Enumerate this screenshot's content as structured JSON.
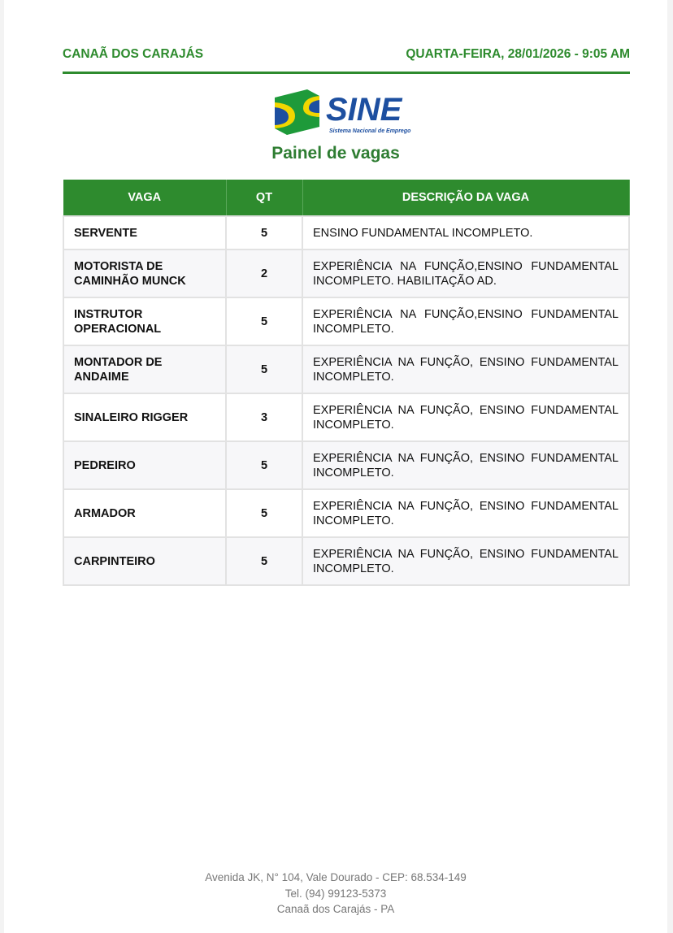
{
  "header": {
    "city": "CANAÃ DOS CARAJÁS",
    "datetime": "QUARTA-FEIRA, 28/01/2026 - 9:05 AM"
  },
  "logo": {
    "text": "SINE",
    "subtitle": "Sistema Nacional de Emprego",
    "colors": {
      "green": "#1e9a3a",
      "yellow": "#f2d600",
      "blue": "#1d4fa0"
    }
  },
  "title": "Painel de vagas",
  "table": {
    "headers": [
      "VAGA",
      "QT",
      "DESCRIÇÃO DA VAGA"
    ],
    "rows": [
      {
        "vaga": "SERVENTE",
        "qt": "5",
        "desc": "ENSINO FUNDAMENTAL INCOMPLETO."
      },
      {
        "vaga": "MOTORISTA DE CAMINHÃO MUNCK",
        "qt": "2",
        "desc": "EXPERIÊNCIA NA FUNÇÃO,ENSINO FUNDAMENTAL INCOMPLETO. HABILITAÇÃO AD."
      },
      {
        "vaga": "INSTRUTOR OPERACIONAL",
        "qt": "5",
        "desc": "EXPERIÊNCIA NA FUNÇÃO,ENSINO FUNDAMENTAL INCOMPLETO."
      },
      {
        "vaga": "MONTADOR DE ANDAIME",
        "qt": "5",
        "desc": "EXPERIÊNCIA NA FUNÇÃO, ENSINO FUNDAMENTAL INCOMPLETO."
      },
      {
        "vaga": "SINALEIRO RIGGER",
        "qt": "3",
        "desc": "EXPERIÊNCIA NA FUNÇÃO, ENSINO FUNDAMENTAL INCOMPLETO."
      },
      {
        "vaga": "PEDREIRO",
        "qt": "5",
        "desc": "EXPERIÊNCIA NA FUNÇÃO, ENSINO FUNDAMENTAL INCOMPLETO."
      },
      {
        "vaga": "ARMADOR",
        "qt": "5",
        "desc": "EXPERIÊNCIA NA FUNÇÃO, ENSINO FUNDAMENTAL INCOMPLETO."
      },
      {
        "vaga": "CARPINTEIRO",
        "qt": "5",
        "desc": "EXPERIÊNCIA NA FUNÇÃO, ENSINO FUNDAMENTAL INCOMPLETO."
      }
    ]
  },
  "footer": {
    "address": "Avenida JK, N° 104, Vale Dourado - CEP: 68.534-149",
    "phone": "Tel. (94) 99123-5373",
    "city": "Canaã dos Carajás - PA"
  }
}
